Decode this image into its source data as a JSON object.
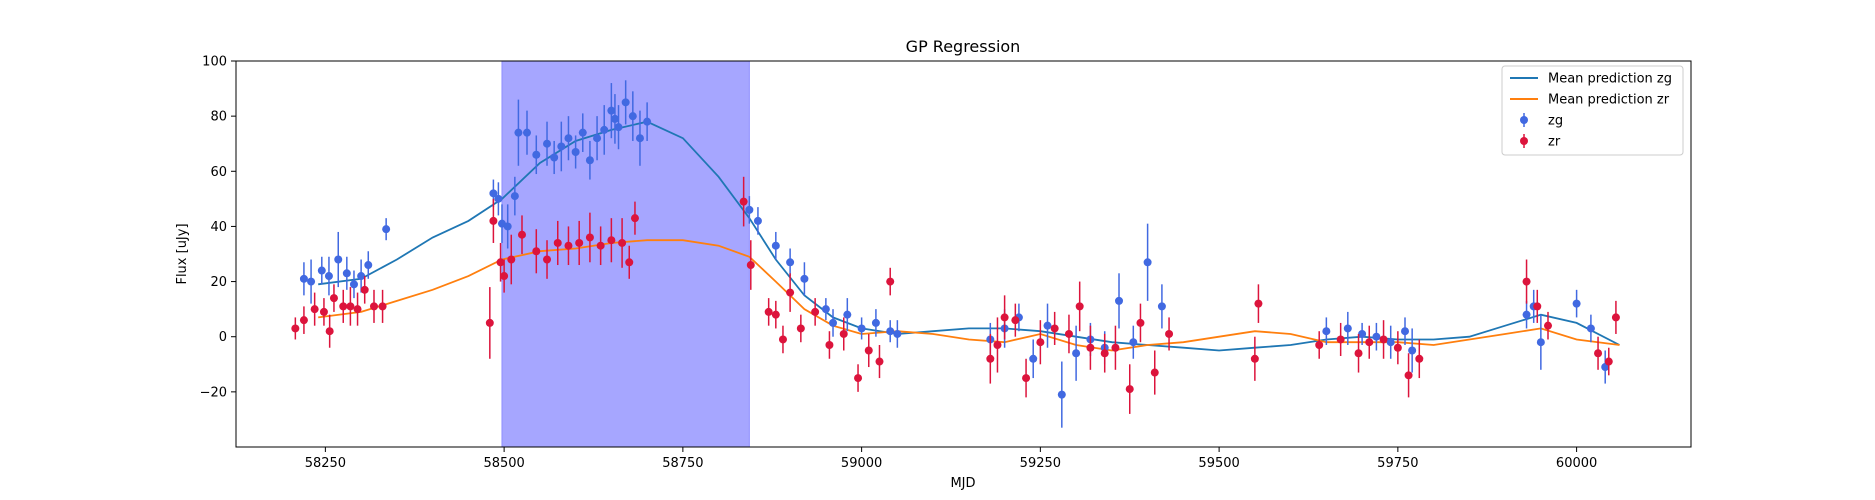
{
  "chart_data": {
    "type": "scatter",
    "title": "GP Regression",
    "xlabel": "MJD",
    "ylabel": "Flux [uJy]",
    "xlim": [
      58125,
      60160
    ],
    "ylim": [
      -40,
      100
    ],
    "xticks": [
      58250,
      58500,
      58750,
      59000,
      59250,
      59500,
      59750,
      60000
    ],
    "yticks": [
      -20,
      0,
      20,
      40,
      60,
      80,
      100
    ],
    "grid": false,
    "legend_position": "top-right",
    "shaded_region": {
      "x": [
        58497,
        58843
      ],
      "color": "#a6a6ff"
    },
    "series": [
      {
        "name": "Mean prediction zg",
        "kind": "line",
        "color": "#1f77b4",
        "x": [
          58240,
          58300,
          58350,
          58400,
          58450,
          58497,
          58550,
          58600,
          58650,
          58700,
          58750,
          58800,
          58843,
          58880,
          58920,
          58960,
          59000,
          59050,
          59100,
          59150,
          59200,
          59250,
          59300,
          59350,
          59400,
          59450,
          59500,
          59550,
          59600,
          59650,
          59700,
          59750,
          59800,
          59850,
          59900,
          59950,
          60000,
          60060
        ],
        "values": [
          19,
          21,
          28,
          36,
          42,
          50,
          63,
          71,
          75,
          78,
          72,
          58,
          43,
          28,
          15,
          7,
          3,
          1,
          2,
          3,
          3,
          2,
          0,
          -2,
          -3,
          -4,
          -5,
          -4,
          -3,
          -1,
          0,
          -1,
          -1,
          0,
          4,
          8,
          5,
          -3
        ]
      },
      {
        "name": "Mean prediction zr",
        "kind": "line",
        "color": "#ff7f0e",
        "x": [
          58240,
          58300,
          58350,
          58400,
          58450,
          58497,
          58550,
          58600,
          58650,
          58700,
          58750,
          58800,
          58843,
          58880,
          58920,
          58960,
          59000,
          59050,
          59100,
          59150,
          59200,
          59250,
          59300,
          59350,
          59400,
          59450,
          59500,
          59550,
          59600,
          59650,
          59700,
          59750,
          59800,
          59850,
          59900,
          59950,
          60000,
          60060
        ],
        "values": [
          7,
          9,
          13,
          17,
          22,
          28,
          31,
          32,
          34,
          35,
          35,
          33,
          29,
          20,
          10,
          4,
          1,
          2,
          1,
          -1,
          -2,
          1,
          -3,
          -5,
          -3,
          -2,
          0,
          2,
          1,
          -2,
          -2,
          -2,
          -3,
          -1,
          1,
          3,
          -1,
          -3
        ]
      },
      {
        "name": "zg",
        "kind": "errorbar",
        "color": "#4169e1",
        "x": [
          58220,
          58230,
          58245,
          58255,
          58268,
          58280,
          58290,
          58300,
          58310,
          58335,
          58485,
          58492,
          58497,
          58505,
          58515,
          58520,
          58532,
          58545,
          58560,
          58570,
          58580,
          58590,
          58600,
          58610,
          58620,
          58630,
          58640,
          58650,
          58655,
          58660,
          58670,
          58680,
          58690,
          58700,
          58843,
          58855,
          58880,
          58900,
          58920,
          58950,
          58960,
          58980,
          59000,
          59020,
          59040,
          59050,
          59180,
          59200,
          59220,
          59240,
          59260,
          59280,
          59300,
          59320,
          59340,
          59360,
          59380,
          59400,
          59420,
          59650,
          59680,
          59700,
          59720,
          59740,
          59760,
          59770,
          59930,
          59940,
          59950,
          60000,
          60020,
          60040
        ],
        "values": [
          21,
          20,
          24,
          22,
          28,
          23,
          19,
          22,
          26,
          39,
          52,
          50,
          41,
          40,
          51,
          74,
          74,
          66,
          70,
          65,
          69,
          72,
          67,
          74,
          64,
          72,
          75,
          82,
          79,
          76,
          85,
          80,
          72,
          78,
          46,
          42,
          33,
          27,
          21,
          10,
          5,
          8,
          3,
          5,
          2,
          1,
          -1,
          3,
          7,
          -8,
          4,
          -21,
          -6,
          -1,
          -4,
          13,
          -2,
          27,
          11,
          2,
          3,
          1,
          0,
          -2,
          2,
          -5,
          8,
          11,
          -2,
          12,
          3,
          -11
        ],
        "errors": [
          6,
          8,
          5,
          7,
          10,
          6,
          5,
          6,
          5,
          4,
          5,
          6,
          7,
          8,
          7,
          12,
          8,
          7,
          8,
          6,
          9,
          8,
          6,
          7,
          7,
          8,
          9,
          10,
          9,
          8,
          8,
          9,
          10,
          7,
          5,
          5,
          5,
          5,
          6,
          4,
          5,
          6,
          4,
          5,
          4,
          5,
          6,
          7,
          5,
          7,
          8,
          12,
          10,
          6,
          6,
          10,
          6,
          14,
          8,
          5,
          6,
          4,
          5,
          6,
          5,
          8,
          5,
          6,
          10,
          5,
          5,
          6
        ],
        "marker": "o"
      },
      {
        "name": "zr",
        "kind": "errorbar",
        "color": "#dc143c",
        "x": [
          58208,
          58220,
          58235,
          58248,
          58256,
          58262,
          58275,
          58285,
          58295,
          58305,
          58318,
          58330,
          58480,
          58485,
          58495,
          58500,
          58510,
          58525,
          58545,
          58560,
          58575,
          58590,
          58605,
          58620,
          58635,
          58650,
          58665,
          58675,
          58683,
          58835,
          58845,
          58870,
          58880,
          58890,
          58900,
          58915,
          58935,
          58955,
          58975,
          58995,
          59010,
          59025,
          59040,
          59180,
          59190,
          59200,
          59215,
          59230,
          59250,
          59270,
          59290,
          59305,
          59320,
          59340,
          59355,
          59375,
          59390,
          59410,
          59430,
          59550,
          59555,
          59640,
          59670,
          59695,
          59710,
          59730,
          59750,
          59765,
          59780,
          59930,
          59945,
          59960,
          60030,
          60045,
          60055
        ],
        "values": [
          3,
          6,
          10,
          9,
          2,
          14,
          11,
          11,
          10,
          17,
          11,
          11,
          5,
          42,
          27,
          22,
          28,
          37,
          31,
          28,
          34,
          33,
          34,
          36,
          33,
          35,
          34,
          27,
          43,
          49,
          26,
          9,
          8,
          -1,
          16,
          3,
          9,
          -3,
          1,
          -15,
          -5,
          -9,
          20,
          -8,
          -3,
          7,
          6,
          -15,
          -2,
          3,
          1,
          11,
          -4,
          -6,
          -4,
          -19,
          5,
          -13,
          1,
          -8,
          12,
          -3,
          -1,
          -6,
          -2,
          -1,
          -4,
          -14,
          -8,
          20,
          11,
          4,
          -6,
          -9,
          7
        ],
        "errors": [
          4,
          5,
          6,
          5,
          6,
          5,
          6,
          7,
          6,
          5,
          6,
          6,
          13,
          8,
          7,
          6,
          9,
          7,
          8,
          7,
          8,
          7,
          8,
          9,
          7,
          8,
          9,
          6,
          6,
          9,
          9,
          5,
          5,
          5,
          7,
          5,
          5,
          5,
          6,
          5,
          6,
          6,
          5,
          9,
          10,
          8,
          6,
          7,
          8,
          6,
          7,
          9,
          8,
          7,
          8,
          9,
          7,
          8,
          6,
          8,
          7,
          5,
          6,
          7,
          6,
          7,
          6,
          8,
          7,
          8,
          6,
          5,
          6,
          5,
          6
        ],
        "marker": "o"
      }
    ]
  }
}
